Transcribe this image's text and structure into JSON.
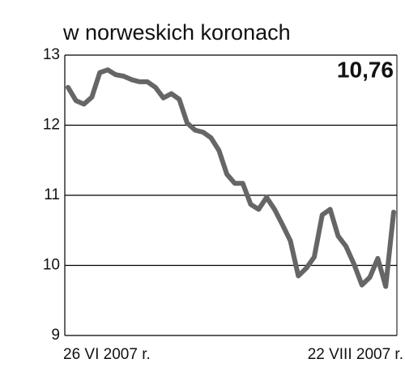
{
  "chart_data": {
    "type": "line",
    "title": "w norweskich koronach",
    "annotation": "10,76",
    "categories": [
      "26 VI 2007 r.",
      null,
      null,
      null,
      null,
      null,
      null,
      null,
      null,
      null,
      null,
      null,
      null,
      null,
      null,
      null,
      null,
      null,
      null,
      null,
      null,
      null,
      null,
      null,
      null,
      null,
      null,
      null,
      null,
      null,
      null,
      null,
      null,
      null,
      null,
      null,
      null,
      null,
      null,
      null,
      null,
      "22 VIII 2007 r."
    ],
    "values": [
      12.54,
      12.35,
      12.3,
      12.4,
      12.75,
      12.79,
      12.72,
      12.7,
      12.65,
      12.62,
      12.62,
      12.54,
      12.39,
      12.45,
      12.37,
      12.03,
      11.93,
      11.9,
      11.82,
      11.64,
      11.3,
      11.17,
      11.17,
      10.87,
      10.8,
      10.97,
      10.8,
      10.58,
      10.35,
      9.85,
      9.96,
      10.12,
      10.72,
      10.8,
      10.42,
      10.27,
      10.02,
      9.72,
      9.83,
      10.1,
      9.7,
      10.76
    ],
    "color": "#666666",
    "ylim": [
      9,
      13
    ],
    "yticks": [
      9,
      10,
      11,
      12,
      13
    ],
    "grid": true
  }
}
